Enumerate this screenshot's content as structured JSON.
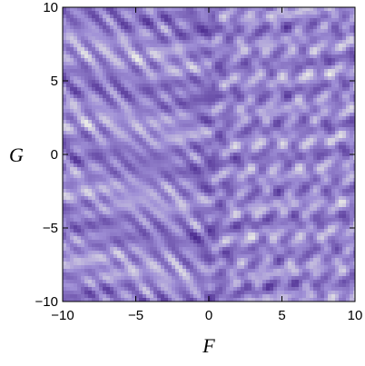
{
  "chart_data": {
    "type": "heatmap",
    "xlabel": "F",
    "ylabel": "G",
    "xlim": [
      -10,
      10
    ],
    "ylim": [
      -10,
      10
    ],
    "x_ticks": [
      {
        "value": -10,
        "label": "−10"
      },
      {
        "value": -5,
        "label": "−5"
      },
      {
        "value": 0,
        "label": "0"
      },
      {
        "value": 5,
        "label": "5"
      },
      {
        "value": 10,
        "label": "10"
      }
    ],
    "y_ticks": [
      {
        "value": -10,
        "label": "−10"
      },
      {
        "value": -5,
        "label": "−5"
      },
      {
        "value": 0,
        "label": "0"
      },
      {
        "value": 5,
        "label": "5"
      },
      {
        "value": 10,
        "label": "10"
      }
    ],
    "colormap": {
      "low": "#4b2a8f",
      "mid": "#9f8fd6",
      "high": "#f4f7e8"
    },
    "grid": false,
    "legend": "none"
  }
}
